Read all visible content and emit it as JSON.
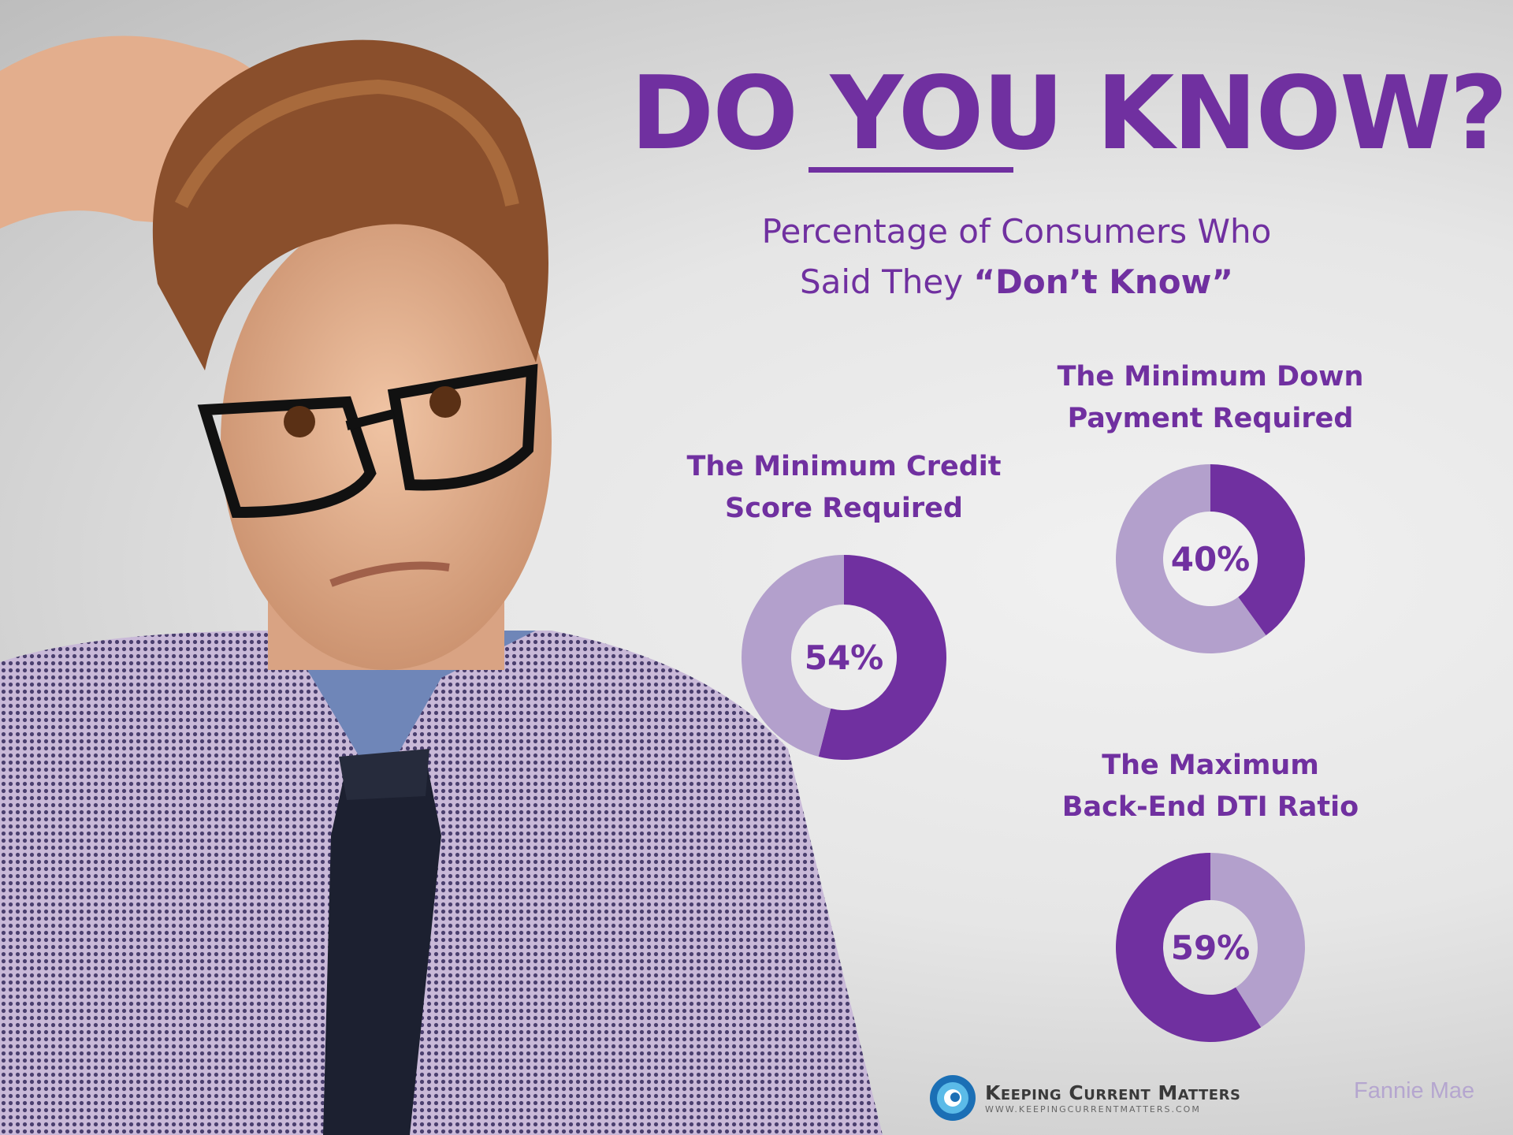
{
  "headline": {
    "prefix": "DO ",
    "emphasis": "YOU",
    "suffix": " KNOW?"
  },
  "subtitle": {
    "line1": "Percentage of Consumers Who",
    "line2_prefix": "Said They ",
    "line2_bold": "“Don’t Know”"
  },
  "colors": {
    "primary": "#7030a0",
    "secondary": "#b3a0cc"
  },
  "chart_data": {
    "type": "pie",
    "variant": "donut",
    "series": [
      {
        "label_line1": "The Minimum Credit",
        "label_line2": "Score Required",
        "value": 54,
        "value_label": "54%",
        "direction": "clockwise"
      },
      {
        "label_line1": "The Minimum Down",
        "label_line2": "Payment Required",
        "value": 40,
        "value_label": "40%",
        "direction": "clockwise"
      },
      {
        "label_line1": "The Maximum",
        "label_line2": "Back-End DTI Ratio",
        "value": 59,
        "value_label": "59%",
        "direction": "counterclockwise"
      }
    ]
  },
  "footer": {
    "logo_name": "Keeping Current Matters",
    "logo_url": "WWW.KEEPINGCURRENTMATTERS.COM",
    "source": "Fannie Mae"
  }
}
